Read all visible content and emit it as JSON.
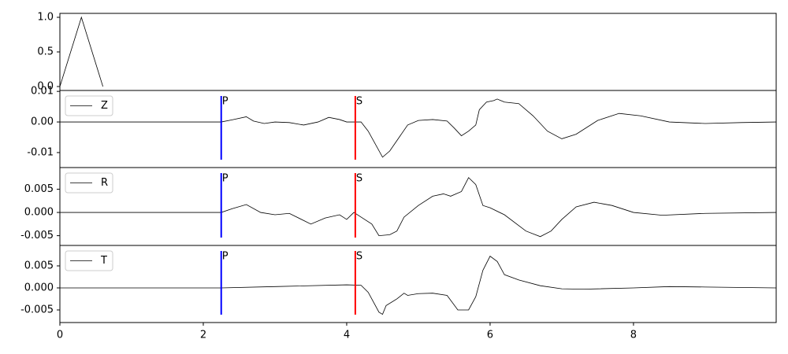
{
  "chart_data": [
    {
      "type": "line",
      "x": [
        0,
        0.3,
        0.6
      ],
      "series": [
        {
          "color": "#000000",
          "values": [
            0,
            1,
            0
          ]
        }
      ],
      "xlim": [
        0,
        9.99
      ],
      "ylim": [
        -0.057,
        1.057
      ],
      "yticks": [
        {
          "value": 0,
          "label": "0.0"
        },
        0.5,
        {
          "value": 1,
          "label": "1.0"
        }
      ]
    },
    {
      "type": "line",
      "x": [
        0,
        2.25,
        2.4,
        2.6,
        2.7,
        2.85,
        3.0,
        3.2,
        3.4,
        3.6,
        3.75,
        3.9,
        4.0,
        4.2,
        4.3,
        4.5,
        4.6,
        4.85,
        5.0,
        5.2,
        5.4,
        5.5,
        5.6,
        5.7,
        5.8,
        5.85,
        5.95,
        6.05,
        6.1,
        6.2,
        6.4,
        6.6,
        6.8,
        7.0,
        7.2,
        7.5,
        7.8,
        8.1,
        8.5,
        9.0,
        9.5,
        9.99
      ],
      "series": [
        {
          "name": "Z",
          "color": "#000000",
          "values": [
            0,
            0,
            0.0007,
            0.0017,
            0.0003,
            -0.0005,
            0.0,
            -0.0002,
            -0.001,
            0.0,
            0.0015,
            0.0008,
            0.0,
            0.0,
            -0.003,
            -0.0115,
            -0.0095,
            -0.001,
            0.0005,
            0.0008,
            0.0003,
            -0.002,
            -0.0045,
            -0.003,
            -0.001,
            0.004,
            0.0065,
            0.007,
            0.0075,
            0.0065,
            0.006,
            0.002,
            -0.003,
            -0.0055,
            -0.004,
            0.0005,
            0.0028,
            0.002,
            0.0,
            -0.0005,
            -0.0002,
            0.0
          ]
        }
      ],
      "xlim": [
        0,
        9.99
      ],
      "ylim": [
        -0.0149,
        0.0103
      ],
      "yticks": [
        -0.01,
        {
          "value": 0,
          "label": "0.00"
        },
        0.01
      ],
      "markers": [
        {
          "label": "P",
          "x": 2.25,
          "color": "#0000ff"
        },
        {
          "label": "S",
          "x": 4.12,
          "color": "#ff0000"
        }
      ]
    },
    {
      "type": "line",
      "x": [
        0,
        2.25,
        2.4,
        2.6,
        2.8,
        3.0,
        3.2,
        3.5,
        3.7,
        3.9,
        4.0,
        4.1,
        4.2,
        4.35,
        4.45,
        4.6,
        4.7,
        4.8,
        5.0,
        5.2,
        5.35,
        5.45,
        5.6,
        5.7,
        5.8,
        5.9,
        6.0,
        6.2,
        6.5,
        6.7,
        6.85,
        7.0,
        7.2,
        7.45,
        7.7,
        8.0,
        8.4,
        9.0,
        9.99
      ],
      "series": [
        {
          "name": "R",
          "color": "#000000",
          "values": [
            0,
            0,
            0.0008,
            0.0017,
            0.0,
            -0.0005,
            -0.0002,
            -0.0025,
            -0.0012,
            -0.0005,
            -0.0015,
            0.0,
            -0.001,
            -0.0025,
            -0.005,
            -0.0048,
            -0.004,
            -0.001,
            0.0015,
            0.0035,
            0.004,
            0.0035,
            0.0045,
            0.0075,
            0.006,
            0.0015,
            0.001,
            -0.0005,
            -0.004,
            -0.0052,
            -0.004,
            -0.0015,
            0.0012,
            0.0022,
            0.0015,
            0.0,
            -0.0006,
            -0.0002,
            0.0
          ]
        }
      ],
      "xlim": [
        0,
        9.99
      ],
      "ylim": [
        -0.0071,
        0.00966
      ],
      "yticks": [
        -0.005,
        {
          "value": 0,
          "label": "0.000"
        },
        0.005
      ],
      "markers": [
        {
          "label": "P",
          "x": 2.25,
          "color": "#0000ff"
        },
        {
          "label": "S",
          "x": 4.12,
          "color": "#ff0000"
        }
      ]
    },
    {
      "type": "line",
      "x": [
        0,
        2.25,
        3.0,
        4.0,
        4.2,
        4.3,
        4.45,
        4.5,
        4.55,
        4.7,
        4.8,
        4.85,
        5.0,
        5.2,
        5.4,
        5.55,
        5.7,
        5.8,
        5.9,
        6.0,
        6.1,
        6.2,
        6.4,
        6.7,
        7.0,
        7.3,
        8.0,
        8.5,
        9.0,
        9.99
      ],
      "series": [
        {
          "name": "T",
          "color": "#000000",
          "values": [
            0,
            0,
            0.0003,
            0.0007,
            0.0006,
            -0.001,
            -0.0055,
            -0.006,
            -0.004,
            -0.0025,
            -0.0012,
            -0.0017,
            -0.0013,
            -0.0012,
            -0.0017,
            -0.005,
            -0.005,
            -0.002,
            0.004,
            0.0072,
            0.006,
            0.003,
            0.0018,
            0.0005,
            -0.0002,
            -0.0003,
            0.0,
            0.0003,
            0.0002,
            0.0
          ]
        }
      ],
      "xlim": [
        0,
        9.99
      ],
      "ylim": [
        -0.00786,
        0.00964
      ],
      "xticks": [
        0,
        2,
        4,
        6,
        8
      ],
      "yticks": [
        -0.005,
        {
          "value": 0,
          "label": "0.000"
        },
        0.005
      ],
      "markers": [
        {
          "label": "P",
          "x": 2.25,
          "color": "#0000ff"
        },
        {
          "label": "S",
          "x": 4.12,
          "color": "#ff0000"
        }
      ]
    }
  ]
}
